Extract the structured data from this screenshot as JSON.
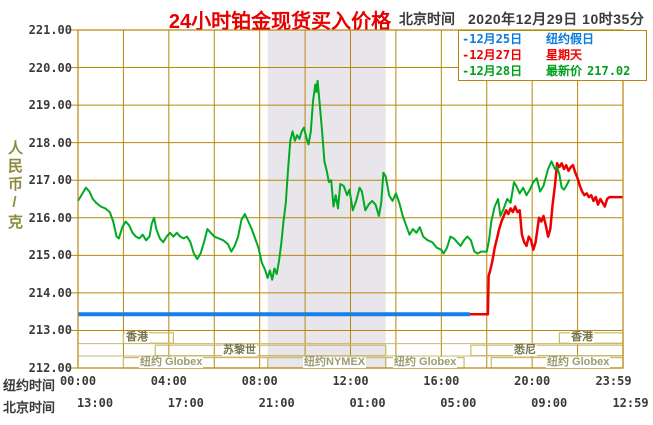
{
  "header": {
    "title": "24小时铂金现货买入价格",
    "timezone_label": "北京时间",
    "datetime": "2020年12月29日 10时35分"
  },
  "legend": {
    "items": [
      {
        "label": "-12月25日",
        "note": "纽约假日",
        "value": "",
        "color": "#0a7be0"
      },
      {
        "label": "-12月27日",
        "note": "星期天",
        "value": "",
        "color": "#ee0000"
      },
      {
        "label": "-12月28日",
        "note": "最新价",
        "value": "217.02",
        "color": "#00a01e"
      }
    ]
  },
  "axes": {
    "y_unit_label": "人民币/克",
    "y_ticks": [
      "221.00",
      "220.00",
      "219.00",
      "218.00",
      "217.00",
      "216.00",
      "215.00",
      "214.00",
      "213.00",
      "212.00"
    ],
    "x_rows": [
      {
        "label": "纽约时间",
        "ticks": [
          "00:00",
          "04:00",
          "08:00",
          "12:00",
          "16:00",
          "20:00",
          "23:59"
        ]
      },
      {
        "label": "北京时间",
        "ticks": [
          "13:00",
          "17:00",
          "21:00",
          "01:00",
          "05:00",
          "09:00",
          "12:59"
        ]
      }
    ]
  },
  "sessions": {
    "rows": [
      {
        "items": [
          {
            "name": "香港",
            "start": 2.0,
            "end": 4.2,
            "label_at": 2.6,
            "color": "#75754c"
          },
          {
            "name": "香港",
            "start": 21.2,
            "end": 24.0,
            "label_at": 22.2,
            "color": "#75754c"
          }
        ]
      },
      {
        "items": [
          {
            "name": "苏黎世",
            "start": 3.4,
            "end": 13.55,
            "label_at": 7.1,
            "color": "#75754c"
          },
          {
            "name": "悉尼",
            "start": 17.3,
            "end": 24.0,
            "label_at": 19.7,
            "color": "#75754c"
          }
        ]
      },
      {
        "items": [
          {
            "name": "纽约 Globex",
            "start": 2.0,
            "end": 8.35,
            "label_at": 4.1,
            "color": "#9b9b70"
          },
          {
            "name": "纽约NYMEX",
            "start": 8.35,
            "end": 13.55,
            "label_at": 11.3,
            "color": "#9b9b70"
          },
          {
            "name": "纽约 Globex",
            "start": 13.55,
            "end": 17.0,
            "label_at": 15.3,
            "color": "#9b9b70"
          },
          {
            "name": "纽约 Globex",
            "start": 18.2,
            "end": 24.0,
            "label_at": 22.0,
            "color": "#9b9b70"
          }
        ]
      }
    ]
  },
  "chart_data": {
    "type": "line",
    "title": "24小时铂金现货买入价格",
    "ylabel": "人民币/克",
    "ylim": [
      212,
      221
    ],
    "x_unit": "hours (New York time)",
    "xlim": [
      0,
      24
    ],
    "grid": true,
    "latest_price": 217.02,
    "shaded_region_hours": [
      8.35,
      13.55
    ],
    "series": [
      {
        "name": "12月25日 纽约假日",
        "color": "#1581e6",
        "width": 4,
        "points": [
          [
            0,
            213.43
          ],
          [
            17.26,
            213.43
          ]
        ]
      },
      {
        "name": "12月27日 星期天",
        "color": "#ee0000",
        "width": 2.5,
        "points": [
          [
            17.26,
            213.43
          ],
          [
            18.05,
            213.43
          ],
          [
            18.08,
            214.45
          ],
          [
            18.15,
            214.6
          ],
          [
            18.25,
            214.85
          ],
          [
            18.35,
            215.2
          ],
          [
            18.45,
            215.45
          ],
          [
            18.55,
            215.7
          ],
          [
            18.65,
            215.9
          ],
          [
            18.75,
            216.05
          ],
          [
            18.85,
            216.2
          ],
          [
            18.95,
            216.1
          ],
          [
            19.05,
            216.25
          ],
          [
            19.15,
            216.15
          ],
          [
            19.25,
            216.3
          ],
          [
            19.35,
            216.15
          ],
          [
            19.45,
            216.2
          ],
          [
            19.55,
            215.55
          ],
          [
            19.65,
            215.35
          ],
          [
            19.75,
            215.25
          ],
          [
            19.85,
            215.5
          ],
          [
            19.95,
            215.4
          ],
          [
            20.05,
            215.15
          ],
          [
            20.15,
            215.35
          ],
          [
            20.3,
            216.0
          ],
          [
            20.4,
            215.9
          ],
          [
            20.5,
            216.05
          ],
          [
            20.6,
            215.8
          ],
          [
            20.7,
            215.5
          ],
          [
            20.8,
            215.7
          ],
          [
            20.9,
            216.35
          ],
          [
            21.0,
            216.85
          ],
          [
            21.1,
            217.45
          ],
          [
            21.2,
            217.35
          ],
          [
            21.3,
            217.45
          ],
          [
            21.4,
            217.3
          ],
          [
            21.5,
            217.4
          ],
          [
            21.6,
            217.25
          ],
          [
            21.7,
            217.35
          ],
          [
            21.8,
            217.4
          ],
          [
            21.9,
            217.2
          ],
          [
            22.0,
            217.05
          ],
          [
            22.1,
            216.85
          ],
          [
            22.2,
            216.7
          ],
          [
            22.3,
            216.6
          ],
          [
            22.4,
            216.65
          ],
          [
            22.5,
            216.55
          ],
          [
            22.6,
            216.6
          ],
          [
            22.7,
            216.45
          ],
          [
            22.8,
            216.55
          ],
          [
            22.9,
            216.35
          ],
          [
            23.0,
            216.5
          ],
          [
            23.1,
            216.4
          ],
          [
            23.2,
            216.3
          ],
          [
            23.3,
            216.5
          ],
          [
            23.4,
            216.55
          ],
          [
            24.0,
            216.55
          ]
        ]
      },
      {
        "name": "12月28日 最新价",
        "color": "#00aa22",
        "width": 2,
        "points": [
          [
            0,
            216.45
          ],
          [
            0.15,
            216.6
          ],
          [
            0.35,
            216.8
          ],
          [
            0.5,
            216.7
          ],
          [
            0.65,
            216.5
          ],
          [
            0.8,
            216.4
          ],
          [
            1.0,
            216.3
          ],
          [
            1.2,
            216.25
          ],
          [
            1.4,
            216.15
          ],
          [
            1.55,
            215.9
          ],
          [
            1.7,
            215.5
          ],
          [
            1.8,
            215.45
          ],
          [
            1.95,
            215.75
          ],
          [
            2.1,
            215.9
          ],
          [
            2.25,
            215.8
          ],
          [
            2.4,
            215.6
          ],
          [
            2.55,
            215.5
          ],
          [
            2.7,
            215.45
          ],
          [
            2.85,
            215.55
          ],
          [
            3.0,
            215.4
          ],
          [
            3.15,
            215.5
          ],
          [
            3.25,
            215.85
          ],
          [
            3.35,
            216.0
          ],
          [
            3.45,
            215.7
          ],
          [
            3.6,
            215.45
          ],
          [
            3.75,
            215.35
          ],
          [
            3.9,
            215.5
          ],
          [
            4.05,
            215.6
          ],
          [
            4.2,
            215.5
          ],
          [
            4.35,
            215.6
          ],
          [
            4.5,
            215.5
          ],
          [
            4.65,
            215.45
          ],
          [
            4.8,
            215.5
          ],
          [
            4.95,
            215.35
          ],
          [
            5.1,
            215.05
          ],
          [
            5.25,
            214.9
          ],
          [
            5.4,
            215.05
          ],
          [
            5.55,
            215.35
          ],
          [
            5.7,
            215.7
          ],
          [
            5.85,
            215.6
          ],
          [
            6.0,
            215.5
          ],
          [
            6.2,
            215.45
          ],
          [
            6.4,
            215.4
          ],
          [
            6.6,
            215.3
          ],
          [
            6.75,
            215.1
          ],
          [
            6.9,
            215.25
          ],
          [
            7.05,
            215.5
          ],
          [
            7.2,
            215.95
          ],
          [
            7.35,
            216.1
          ],
          [
            7.5,
            215.9
          ],
          [
            7.65,
            215.7
          ],
          [
            7.8,
            215.45
          ],
          [
            7.95,
            215.2
          ],
          [
            8.1,
            214.8
          ],
          [
            8.25,
            214.6
          ],
          [
            8.35,
            214.4
          ],
          [
            8.45,
            214.6
          ],
          [
            8.55,
            214.35
          ],
          [
            8.65,
            214.65
          ],
          [
            8.75,
            214.5
          ],
          [
            8.85,
            214.85
          ],
          [
            8.95,
            215.3
          ],
          [
            9.05,
            215.9
          ],
          [
            9.15,
            216.4
          ],
          [
            9.25,
            217.3
          ],
          [
            9.35,
            218.05
          ],
          [
            9.45,
            218.3
          ],
          [
            9.55,
            218.05
          ],
          [
            9.65,
            218.2
          ],
          [
            9.75,
            218.1
          ],
          [
            9.85,
            218.3
          ],
          [
            9.95,
            218.4
          ],
          [
            10.05,
            218.15
          ],
          [
            10.15,
            217.95
          ],
          [
            10.25,
            218.3
          ],
          [
            10.35,
            219.1
          ],
          [
            10.45,
            219.55
          ],
          [
            10.5,
            219.35
          ],
          [
            10.55,
            219.65
          ],
          [
            10.65,
            219.0
          ],
          [
            10.75,
            218.3
          ],
          [
            10.85,
            217.5
          ],
          [
            10.95,
            217.25
          ],
          [
            11.05,
            216.95
          ],
          [
            11.15,
            217.0
          ],
          [
            11.25,
            216.3
          ],
          [
            11.35,
            216.6
          ],
          [
            11.45,
            216.25
          ],
          [
            11.55,
            216.9
          ],
          [
            11.7,
            216.85
          ],
          [
            11.85,
            216.6
          ],
          [
            11.95,
            216.75
          ],
          [
            12.1,
            216.2
          ],
          [
            12.25,
            216.45
          ],
          [
            12.4,
            216.8
          ],
          [
            12.5,
            216.7
          ],
          [
            12.65,
            216.2
          ],
          [
            12.8,
            216.35
          ],
          [
            12.95,
            216.45
          ],
          [
            13.1,
            216.35
          ],
          [
            13.25,
            216.05
          ],
          [
            13.35,
            216.4
          ],
          [
            13.45,
            217.2
          ],
          [
            13.55,
            217.1
          ],
          [
            13.7,
            216.6
          ],
          [
            13.85,
            216.45
          ],
          [
            14.0,
            216.65
          ],
          [
            14.15,
            216.4
          ],
          [
            14.3,
            216.05
          ],
          [
            14.45,
            215.8
          ],
          [
            14.6,
            215.55
          ],
          [
            14.75,
            215.7
          ],
          [
            14.9,
            215.6
          ],
          [
            15.05,
            215.75
          ],
          [
            15.2,
            215.5
          ],
          [
            15.4,
            215.4
          ],
          [
            15.6,
            215.35
          ],
          [
            15.8,
            215.2
          ],
          [
            16.0,
            215.15
          ],
          [
            16.1,
            215.05
          ],
          [
            16.25,
            215.2
          ],
          [
            16.4,
            215.5
          ],
          [
            16.55,
            215.45
          ],
          [
            16.7,
            215.35
          ],
          [
            16.85,
            215.25
          ],
          [
            17.0,
            215.4
          ],
          [
            17.15,
            215.5
          ],
          [
            17.3,
            215.4
          ],
          [
            17.45,
            215.1
          ],
          [
            17.6,
            215.05
          ],
          [
            17.75,
            215.1
          ],
          [
            18.0,
            215.1
          ],
          [
            18.1,
            215.4
          ],
          [
            18.2,
            215.9
          ],
          [
            18.35,
            216.3
          ],
          [
            18.5,
            216.5
          ],
          [
            18.6,
            216.05
          ],
          [
            18.75,
            216.25
          ],
          [
            18.9,
            216.5
          ],
          [
            19.05,
            216.4
          ],
          [
            19.2,
            216.95
          ],
          [
            19.3,
            216.85
          ],
          [
            19.45,
            216.65
          ],
          [
            19.6,
            216.8
          ],
          [
            19.75,
            216.6
          ],
          [
            19.9,
            216.75
          ],
          [
            20.05,
            216.95
          ],
          [
            20.2,
            217.05
          ],
          [
            20.35,
            216.7
          ],
          [
            20.5,
            216.85
          ],
          [
            20.7,
            217.3
          ],
          [
            20.85,
            217.5
          ],
          [
            21.0,
            217.3
          ],
          [
            21.1,
            217.35
          ],
          [
            21.2,
            217.15
          ],
          [
            21.3,
            216.8
          ],
          [
            21.4,
            216.75
          ],
          [
            21.5,
            216.85
          ],
          [
            21.65,
            217.02
          ]
        ]
      }
    ],
    "colors": {
      "grid": "#b8860b",
      "session": "#c9ba6e",
      "shaded_band": "#e9e6eb",
      "title_red": "#e60000",
      "text_dark": "#3a3a3a",
      "y_unit_olive": "#8b8b3d"
    }
  }
}
